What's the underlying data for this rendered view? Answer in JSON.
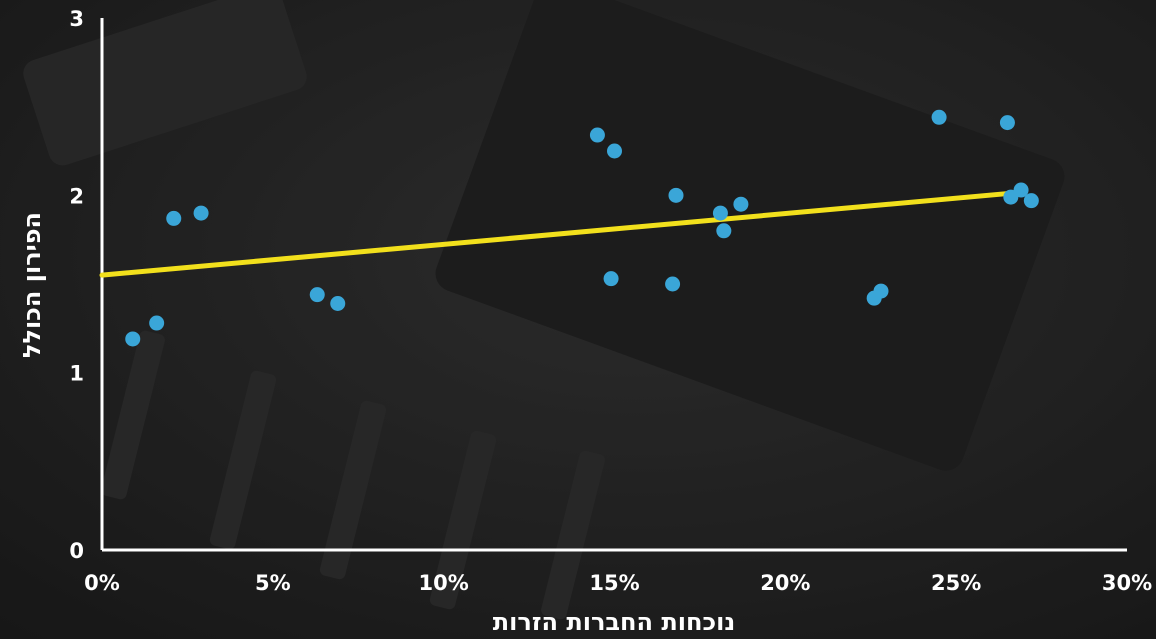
{
  "chart_data": {
    "type": "scatter",
    "title": "",
    "xlabel": "נוכחות החברות הזרות",
    "ylabel": "הפירון הכולל",
    "xlim": [
      0,
      30
    ],
    "ylim": [
      0,
      3
    ],
    "x_ticks": [
      "0%",
      "5%",
      "10%",
      "15%",
      "20%",
      "25%",
      "30%"
    ],
    "y_ticks": [
      "0",
      "1",
      "2",
      "3"
    ],
    "grid": false,
    "legend": "none",
    "colors": {
      "background": "#2a2a2a",
      "points": "#3aa6d8",
      "trendline": "#f2e01c",
      "axes": "#ffffff",
      "text": "#ffffff"
    },
    "points": [
      {
        "x": 0.9,
        "y": 1.19
      },
      {
        "x": 1.6,
        "y": 1.28
      },
      {
        "x": 2.1,
        "y": 1.87
      },
      {
        "x": 2.9,
        "y": 1.9
      },
      {
        "x": 6.3,
        "y": 1.44
      },
      {
        "x": 6.9,
        "y": 1.39
      },
      {
        "x": 14.5,
        "y": 2.34
      },
      {
        "x": 14.9,
        "y": 1.53
      },
      {
        "x": 15.0,
        "y": 2.25
      },
      {
        "x": 16.7,
        "y": 1.5
      },
      {
        "x": 16.8,
        "y": 2.0
      },
      {
        "x": 18.1,
        "y": 1.9
      },
      {
        "x": 18.2,
        "y": 1.8
      },
      {
        "x": 18.7,
        "y": 1.95
      },
      {
        "x": 22.6,
        "y": 1.42
      },
      {
        "x": 22.8,
        "y": 1.46
      },
      {
        "x": 24.5,
        "y": 2.44
      },
      {
        "x": 26.5,
        "y": 2.41
      },
      {
        "x": 26.6,
        "y": 1.99
      },
      {
        "x": 26.9,
        "y": 2.03
      },
      {
        "x": 27.2,
        "y": 1.97
      }
    ],
    "trendline": {
      "x": [
        0,
        26.5
      ],
      "y": [
        1.55,
        2.01
      ]
    }
  }
}
